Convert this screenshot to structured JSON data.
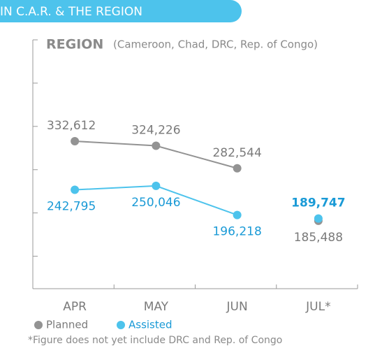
{
  "chart_data": {
    "type": "line",
    "header": "IN C.A.R. & THE REGION",
    "title": "REGION",
    "subtitle": "(Cameroon, Chad, DRC, Rep. of Congo)",
    "categories": [
      "APR",
      "MAY",
      "JUN",
      "JUL*"
    ],
    "series": [
      {
        "name": "Planned",
        "color": "#939393",
        "values": [
          332612,
          324226,
          282544,
          185488
        ],
        "value_labels": [
          "332,612",
          "324,226",
          "282,544",
          "185,488"
        ]
      },
      {
        "name": "Assisted",
        "color": "#4dc3ec",
        "values": [
          242795,
          250046,
          196218,
          189747
        ],
        "value_labels": [
          "242,795",
          "250,046",
          "196,218",
          "189,747"
        ]
      }
    ],
    "isolated_last_point": true,
    "ylim": [
      60000,
      520000
    ],
    "yticks": [
      120000,
      200000,
      280000,
      360000,
      440000,
      520000
    ],
    "legend": "bottom-left",
    "footnote": "*Figure does not yet include DRC and Rep. of Congo"
  }
}
